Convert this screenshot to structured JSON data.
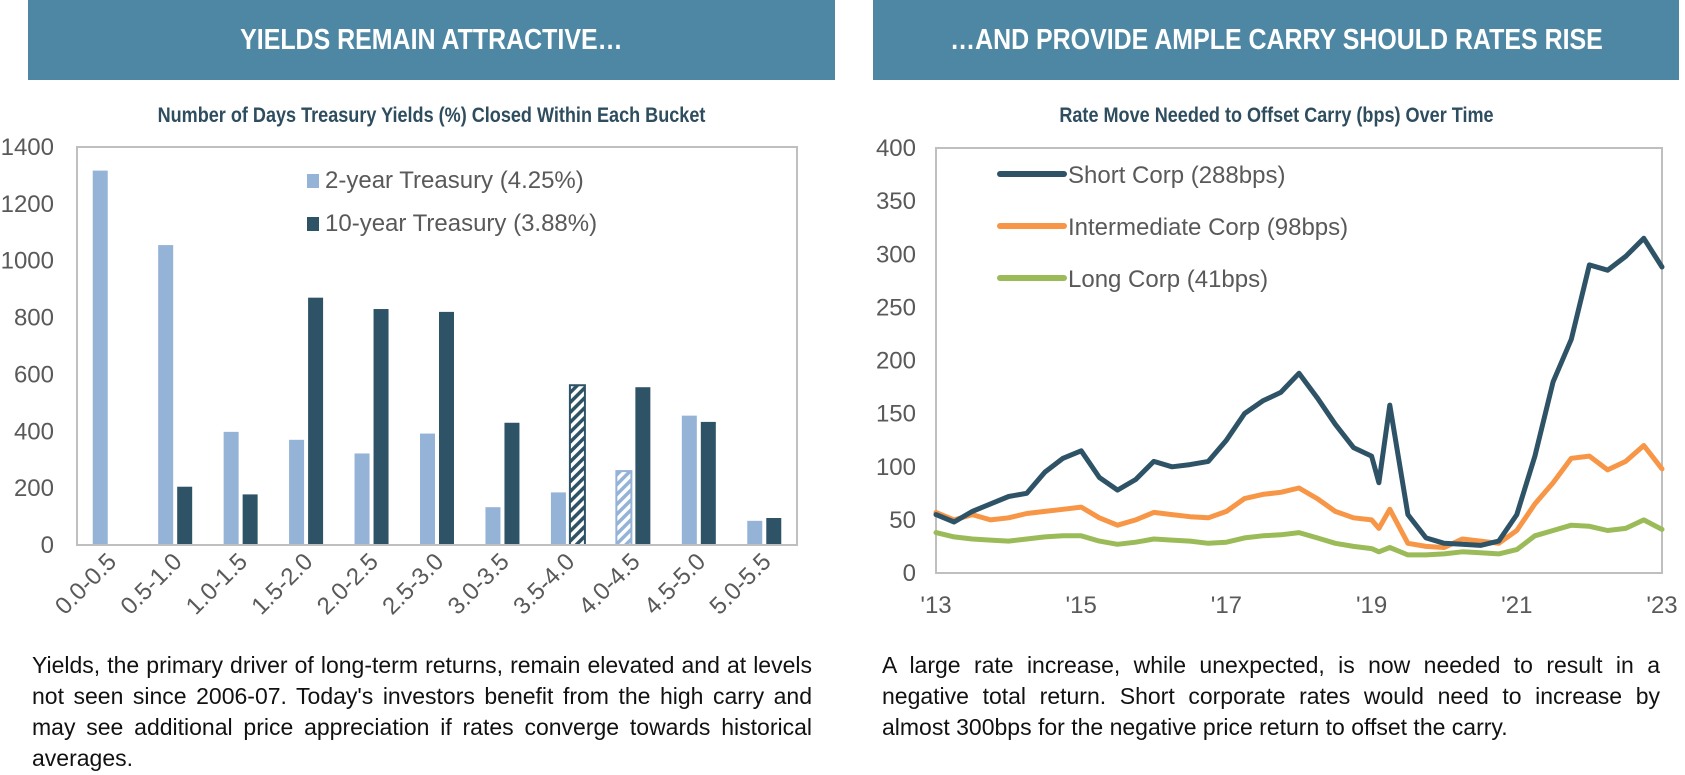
{
  "left_panel": {
    "banner": "YIELDS REMAIN ATTRACTIVE…",
    "caption": "Yields, the primary driver of long-term returns, remain elevated and at levels not seen since 2006-07. Today's investors benefit from the high carry and may see additional price appreciation if rates converge towards historical averages."
  },
  "right_panel": {
    "banner": "…AND PROVIDE AMPLE CARRY SHOULD RATES RISE",
    "caption": "A large rate increase, while unexpected, is now needed to result in a negative total return. Short corporate rates would need to increase by almost 300bps for the negative price return to offset the carry."
  },
  "colors": {
    "banner": "#4d87a3",
    "two_year": "#95b3d7",
    "ten_year": "#2f5366",
    "short_corp": "#2f5366",
    "intermediate_corp": "#f79646",
    "long_corp": "#9bbb59",
    "axis": "#bfbfbf"
  },
  "chart_data": [
    {
      "type": "bar",
      "title": "Number of Days Treasury Yields (%) Closed Within Each Bucket",
      "xlabel": "",
      "ylabel": "",
      "ylim": [
        0,
        1400
      ],
      "yticks": [
        0,
        200,
        400,
        600,
        800,
        1000,
        1200,
        1400
      ],
      "grid": false,
      "legend_position": "top-right",
      "categories": [
        "0.0-0.5",
        "0.5-1.0",
        "1.0-1.5",
        "1.5-2.0",
        "2.0-2.5",
        "2.5-3.0",
        "3.0-3.5",
        "3.5-4.0",
        "4.0-4.5",
        "4.5-5.0",
        "5.0-5.5"
      ],
      "series": [
        {
          "name": "2-year Treasury (4.25%)",
          "values": [
            1317,
            1055,
            398,
            370,
            322,
            392,
            133,
            185,
            260,
            455,
            85
          ],
          "hatched_category": "4.0-4.5"
        },
        {
          "name": "10-year Treasury (3.88%)",
          "values": [
            0,
            205,
            178,
            870,
            830,
            820,
            430,
            562,
            555,
            433,
            95
          ],
          "hatched_category": "3.5-4.0"
        }
      ]
    },
    {
      "type": "line",
      "title": "Rate Move Needed to Offset Carry (bps) Over Time",
      "xlabel": "",
      "ylabel": "",
      "ylim": [
        0,
        400
      ],
      "yticks": [
        0,
        50,
        100,
        150,
        200,
        250,
        300,
        350,
        400
      ],
      "xlim": [
        2013,
        2023
      ],
      "xticks": [
        2013,
        2015,
        2017,
        2019,
        2021,
        2023
      ],
      "xtick_labels": [
        "'13",
        "'15",
        "'17",
        "'19",
        "'21",
        "'23"
      ],
      "grid": false,
      "legend_position": "top-left",
      "x": [
        2013.0,
        2013.25,
        2013.5,
        2013.75,
        2014.0,
        2014.25,
        2014.5,
        2014.75,
        2015.0,
        2015.25,
        2015.5,
        2015.75,
        2016.0,
        2016.25,
        2016.5,
        2016.75,
        2017.0,
        2017.25,
        2017.5,
        2017.75,
        2018.0,
        2018.25,
        2018.5,
        2018.75,
        2019.0,
        2019.1,
        2019.25,
        2019.5,
        2019.75,
        2020.0,
        2020.25,
        2020.5,
        2020.75,
        2021.0,
        2021.25,
        2021.5,
        2021.75,
        2022.0,
        2022.25,
        2022.5,
        2022.75,
        2023.0
      ],
      "series": [
        {
          "name": "Short Corp (288bps)",
          "values": [
            55,
            48,
            58,
            65,
            72,
            75,
            95,
            108,
            115,
            90,
            78,
            88,
            105,
            100,
            102,
            105,
            125,
            150,
            162,
            170,
            188,
            165,
            140,
            118,
            110,
            85,
            158,
            55,
            33,
            28,
            27,
            26,
            30,
            55,
            110,
            180,
            220,
            290,
            285,
            298,
            315,
            288
          ]
        },
        {
          "name": "Intermediate Corp (98bps)",
          "values": [
            57,
            50,
            55,
            50,
            52,
            56,
            58,
            60,
            62,
            52,
            45,
            50,
            57,
            55,
            53,
            52,
            58,
            70,
            74,
            76,
            80,
            70,
            58,
            52,
            50,
            42,
            60,
            28,
            25,
            24,
            32,
            30,
            28,
            40,
            65,
            85,
            108,
            110,
            97,
            105,
            120,
            98
          ]
        },
        {
          "name": "Long Corp (41bps)",
          "values": [
            38,
            34,
            32,
            31,
            30,
            32,
            34,
            35,
            35,
            30,
            27,
            29,
            32,
            31,
            30,
            28,
            29,
            33,
            35,
            36,
            38,
            33,
            28,
            25,
            23,
            20,
            24,
            17,
            17,
            18,
            20,
            19,
            18,
            22,
            35,
            40,
            45,
            44,
            40,
            42,
            50,
            41
          ]
        }
      ]
    }
  ]
}
